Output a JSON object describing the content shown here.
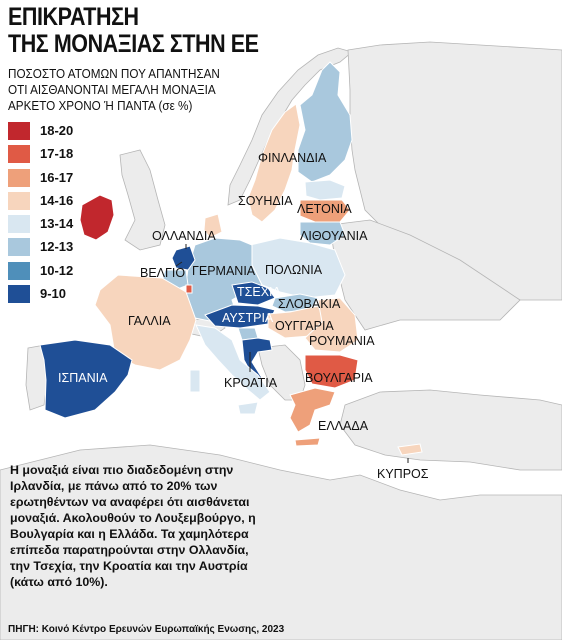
{
  "title_line1": "ΕΠΙΚΡΑΤΗΣΗ",
  "title_line2": "ΤΗΣ ΜΟΝΑΞΙΑΣ ΣΤΗΝ ΕΕ",
  "subtitle_line1": "ΠΟΣΟΣΤΟ ΑΤΟΜΩΝ ΠΟΥ ΑΠΑΝΤΗΣΑΝ",
  "subtitle_line2": "ΟΤΙ ΑΙΣΘΑΝΟΝΤΑΙ ΜΕΓΑΛΗ ΜΟΝΑΞΙΑ",
  "subtitle_line3": "ΑΡΚΕΤΟ ΧΡΟΝΟ Ή ΠΑΝΤΑ (σε %)",
  "legend": [
    {
      "label": "18-20",
      "color": "#c1272d"
    },
    {
      "label": "17-18",
      "color": "#e05a45"
    },
    {
      "label": "16-17",
      "color": "#eea07a"
    },
    {
      "label": "14-16",
      "color": "#f7d5bd"
    },
    {
      "label": "13-14",
      "color": "#d9e7f1"
    },
    {
      "label": "12-13",
      "color": "#a9c8dd"
    },
    {
      "label": "10-12",
      "color": "#4f8fba"
    },
    {
      "label": "9-10",
      "color": "#1f4f96"
    }
  ],
  "countries": {
    "finland": "ΦΙΝΛΑΝΔΙΑ",
    "sweden": "ΣΟΥΗΔΙΑ",
    "latvia": "ΛΕΤΟΝΙΑ",
    "lithuania": "ΛΙΘΟΥΑΝΙΑ",
    "netherlands": "ΟΛΛΑΝΔΙΑ",
    "belgium": "ΒΕΛΓΙΟ",
    "germany": "ΓΕΡΜΑΝΙΑ",
    "poland": "ΠΟΛΩΝΙΑ",
    "czechia": "ΤΣΕΧΙΑ",
    "slovakia": "ΣΛΟΒΑΚΙΑ",
    "austria": "ΑΥΣΤΡΙΑ",
    "hungary": "ΟΥΓΓΑΡΙΑ",
    "romania": "ΡΟΥΜΑΝΙΑ",
    "france": "ΓΑΛΛΙΑ",
    "spain": "ΙΣΠΑΝΙΑ",
    "croatia": "ΚΡΟΑΤΙΑ",
    "bulgaria": "ΒΟΥΛΓΑΡΙΑ",
    "greece": "ΕΛΛΑΔΑ",
    "cyprus": "ΚΥΠΡΟΣ"
  },
  "body_text": "Η μοναξιά είναι πιο διαδεδομένη στην Ιρλανδία, με πάνω από το 20% των ερωτηθέντων να αναφέρει ότι αισθάνεται μοναξιά. Ακολουθούν το Λουξεμβούργο, η Βουλγαρία και η Ελλάδα. Τα χαμηλότερα επίπεδα παρατηρούνται στην Ολλανδία, την Τσεχία, την Κροατία και την Αυστρία (κάτω από 10%).",
  "source": "ΠΗΓΗ: Κοινό Κέντρο Ερευνών Ευρωπαϊκής Ενωσης, 2023"
}
